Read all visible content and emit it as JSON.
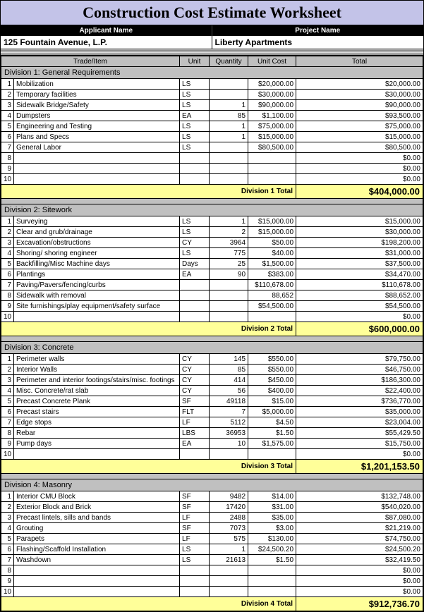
{
  "title": "Construction Cost Estimate Worksheet",
  "labels": {
    "applicant": "Applicant Name",
    "project": "Project  Name",
    "trade": "Trade/Item",
    "unit": "Unit",
    "qty": "Quantity",
    "cost": "Unit Cost",
    "total": "Total"
  },
  "applicant_name": "125 Fountain Avenue, L.P.",
  "project_name": "Liberty Apartments",
  "divisions": [
    {
      "name": "Division 1: General Requirements",
      "total_label": "Division 1 Total",
      "total": "$404,000.00",
      "rows": [
        {
          "n": "1",
          "item": "Mobilization",
          "unit": "LS",
          "qty": "",
          "cost": "$20,000.00",
          "total": "$20,000.00"
        },
        {
          "n": "2",
          "item": "Temporary facilities",
          "unit": "LS",
          "qty": "",
          "cost": "$30,000.00",
          "total": "$30,000.00"
        },
        {
          "n": "3",
          "item": "Sidewalk Bridge/Safety",
          "unit": "LS",
          "qty": "1",
          "cost": "$90,000.00",
          "total": "$90,000.00"
        },
        {
          "n": "4",
          "item": "Dumpsters",
          "unit": "EA",
          "qty": "85",
          "cost": "$1,100.00",
          "total": "$93,500.00"
        },
        {
          "n": "5",
          "item": "Engineering and Testing",
          "unit": "LS",
          "qty": "1",
          "cost": "$75,000.00",
          "total": "$75,000.00"
        },
        {
          "n": "6",
          "item": "Plans and Specs",
          "unit": "LS",
          "qty": "1",
          "cost": "$15,000.00",
          "total": "$15,000.00"
        },
        {
          "n": "7",
          "item": "General Labor",
          "unit": "LS",
          "qty": "",
          "cost": "$80,500.00",
          "total": "$80,500.00"
        },
        {
          "n": "8",
          "item": "",
          "unit": "",
          "qty": "",
          "cost": "",
          "total": "$0.00"
        },
        {
          "n": "9",
          "item": "",
          "unit": "",
          "qty": "",
          "cost": "",
          "total": "$0.00"
        },
        {
          "n": "10",
          "item": "",
          "unit": "",
          "qty": "",
          "cost": "",
          "total": "$0.00"
        }
      ]
    },
    {
      "name": "Division 2: Sitework",
      "total_label": "Division 2 Total",
      "total": "$600,000.00",
      "rows": [
        {
          "n": "1",
          "item": "Surveying",
          "unit": "LS",
          "qty": "1",
          "cost": "$15,000.00",
          "total": "$15,000.00"
        },
        {
          "n": "2",
          "item": "Clear and grub/drainage",
          "unit": "LS",
          "qty": "2",
          "cost": "$15,000.00",
          "total": "$30,000.00"
        },
        {
          "n": "3",
          "item": "Excavation/obstructions",
          "unit": "CY",
          "qty": "3964",
          "cost": "$50.00",
          "total": "$198,200.00"
        },
        {
          "n": "4",
          "item": "Shoring/ shoring engineer",
          "unit": "LS",
          "qty": "775",
          "cost": "$40.00",
          "total": "$31,000.00"
        },
        {
          "n": "5",
          "item": "Backfilling/Misc Machine days",
          "unit": "Days",
          "qty": "25",
          "cost": "$1,500.00",
          "total": "$37,500.00"
        },
        {
          "n": "6",
          "item": "Plantings",
          "unit": "EA",
          "qty": "90",
          "cost": "$383.00",
          "total": "$34,470.00"
        },
        {
          "n": "7",
          "item": "Paving/Pavers/fencing/curbs",
          "unit": "",
          "qty": "",
          "cost": "$110,678.00",
          "total": "$110,678.00"
        },
        {
          "n": "8",
          "item": "Sidewalk with removal",
          "unit": "",
          "qty": "",
          "cost": "88,652",
          "total": "$88,652.00"
        },
        {
          "n": "9",
          "item": "Site furnishings/play equipment/safety surface",
          "unit": "",
          "qty": "",
          "cost": "$54,500.00",
          "total": "$54,500.00"
        },
        {
          "n": "10",
          "item": "",
          "unit": "",
          "qty": "",
          "cost": "",
          "total": "$0.00"
        }
      ]
    },
    {
      "name": "Division 3: Concrete",
      "total_label": "Division 3 Total",
      "total": "$1,201,153.50",
      "rows": [
        {
          "n": "1",
          "item": "Perimeter walls",
          "unit": "CY",
          "qty": "145",
          "cost": "$550.00",
          "total": "$79,750.00"
        },
        {
          "n": "2",
          "item": "Interior Walls",
          "unit": "CY",
          "qty": "85",
          "cost": "$550.00",
          "total": "$46,750.00"
        },
        {
          "n": "3",
          "item": "Perimeter and interior footings/stairs/misc. footings",
          "unit": "CY",
          "qty": "414",
          "cost": "$450.00",
          "total": "$186,300.00"
        },
        {
          "n": "4",
          "item": "Misc. Concrete/rat slab",
          "unit": "CY",
          "qty": "56",
          "cost": "$400.00",
          "total": "$22,400.00"
        },
        {
          "n": "5",
          "item": "Precast Concrete Plank",
          "unit": "SF",
          "qty": "49118",
          "cost": "$15.00",
          "total": "$736,770.00"
        },
        {
          "n": "6",
          "item": "Precast stairs",
          "unit": "FLT",
          "qty": "7",
          "cost": "$5,000.00",
          "total": "$35,000.00"
        },
        {
          "n": "7",
          "item": "Edge stops",
          "unit": "LF",
          "qty": "5112",
          "cost": "$4.50",
          "total": "$23,004.00"
        },
        {
          "n": "8",
          "item": "Rebar",
          "unit": "LBS",
          "qty": "36953",
          "cost": "$1.50",
          "total": "$55,429.50"
        },
        {
          "n": "9",
          "item": "Pump days",
          "unit": "EA",
          "qty": "10",
          "cost": "$1,575.00",
          "total": "$15,750.00"
        },
        {
          "n": "10",
          "item": "",
          "unit": "",
          "qty": "",
          "cost": "",
          "total": "$0.00"
        }
      ]
    },
    {
      "name": "Division 4: Masonry",
      "total_label": "Division 4 Total",
      "total": "$912,736.70",
      "rows": [
        {
          "n": "1",
          "item": "Interior CMU Block",
          "unit": "SF",
          "qty": "9482",
          "cost": "$14.00",
          "total": "$132,748.00"
        },
        {
          "n": "2",
          "item": "Exterior Block and Brick",
          "unit": "SF",
          "qty": "17420",
          "cost": "$31.00",
          "total": "$540,020.00"
        },
        {
          "n": "3",
          "item": "Precast lintels, sills and bands",
          "unit": "LF",
          "qty": "2488",
          "cost": "$35.00",
          "total": "$87,080.00"
        },
        {
          "n": "4",
          "item": "Grouting",
          "unit": "SF",
          "qty": "7073",
          "cost": "$3.00",
          "total": "$21,219.00"
        },
        {
          "n": "5",
          "item": "Parapets",
          "unit": "LF",
          "qty": "575",
          "cost": "$130.00",
          "total": "$74,750.00"
        },
        {
          "n": "6",
          "item": "Flashing/Scaffold Installation",
          "unit": "LS",
          "qty": "1",
          "cost": "$24,500.20",
          "total": "$24,500.20"
        },
        {
          "n": "7",
          "item": "Washdown",
          "unit": "LS",
          "qty": "21613",
          "cost": "$1.50",
          "total": "$32,419.50"
        },
        {
          "n": "8",
          "item": "",
          "unit": "",
          "qty": "",
          "cost": "",
          "total": "$0.00"
        },
        {
          "n": "9",
          "item": "",
          "unit": "",
          "qty": "",
          "cost": "",
          "total": "$0.00"
        },
        {
          "n": "10",
          "item": "",
          "unit": "",
          "qty": "",
          "cost": "",
          "total": "$0.00"
        }
      ]
    }
  ]
}
